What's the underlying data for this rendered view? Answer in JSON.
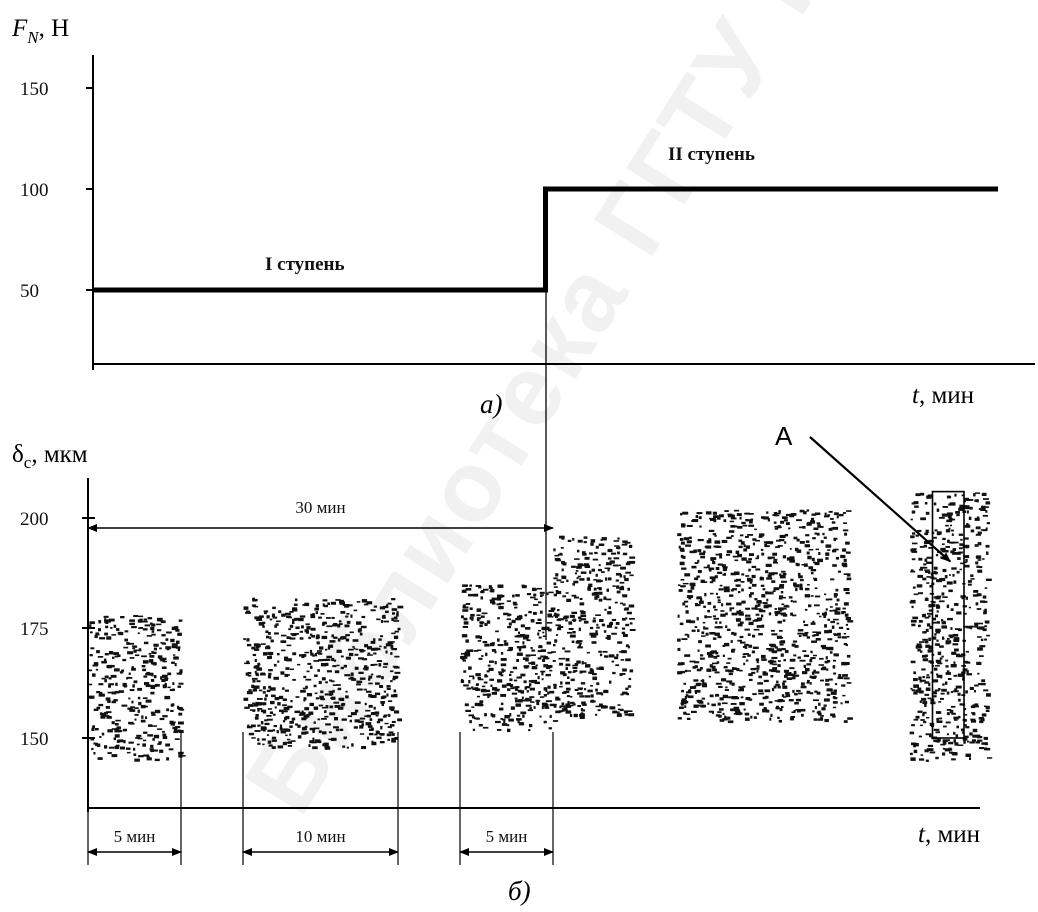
{
  "watermark": "Библиотека ГГТУ им.П.О.Сухого",
  "chart_data": [
    {
      "panel": "а)",
      "type": "line",
      "ylabel_main": "F",
      "ylabel_sub": "N",
      "ylabel_rest": ", Н",
      "xlabel_main": "t",
      "xlabel_rest": ", мин",
      "yticks": [
        "50",
        "100",
        "150"
      ],
      "ylim": [
        15,
        160
      ],
      "xlim": [
        0,
        60
      ],
      "series": [
        {
          "name": "I ступень",
          "x": [
            0,
            30
          ],
          "y": [
            50,
            50
          ]
        },
        {
          "name": "II ступень",
          "x": [
            30,
            60
          ],
          "y": [
            100,
            100
          ]
        }
      ],
      "step_time": 30
    },
    {
      "panel": "б)",
      "type": "scatter",
      "ylabel_main": "δ",
      "ylabel_sub": "c",
      "ylabel_rest": ", мкм",
      "xlabel_main": "t",
      "xlabel_rest": ", мин",
      "yticks": [
        "150",
        "175",
        "200"
      ],
      "ylim": [
        135,
        210
      ],
      "xlim": [
        0,
        60
      ],
      "bands": [
        {
          "x": [
            0,
            6
          ],
          "y": [
            145,
            178
          ]
        },
        {
          "x": [
            10,
            20
          ],
          "y": [
            148,
            182
          ]
        },
        {
          "x": [
            24,
            30
          ],
          "y": [
            152,
            185
          ]
        },
        {
          "x": [
            30,
            35
          ],
          "y": [
            155,
            196
          ]
        },
        {
          "x": [
            38,
            49
          ],
          "y": [
            154,
            202
          ]
        },
        {
          "x": [
            53,
            58
          ],
          "y": [
            145,
            206
          ]
        }
      ],
      "intervals": [
        {
          "x": [
            0,
            6
          ],
          "label": "5 мин"
        },
        {
          "x": [
            10,
            20
          ],
          "label": "10 мин"
        },
        {
          "x": [
            24,
            30
          ],
          "label": "5 мин"
        }
      ],
      "top_interval": {
        "x": [
          0,
          30
        ],
        "y": 200,
        "label": "30 мин"
      },
      "annotation": {
        "text": "A",
        "box_x": [
          55,
          56
        ],
        "box_y": [
          150,
          206
        ]
      }
    }
  ]
}
